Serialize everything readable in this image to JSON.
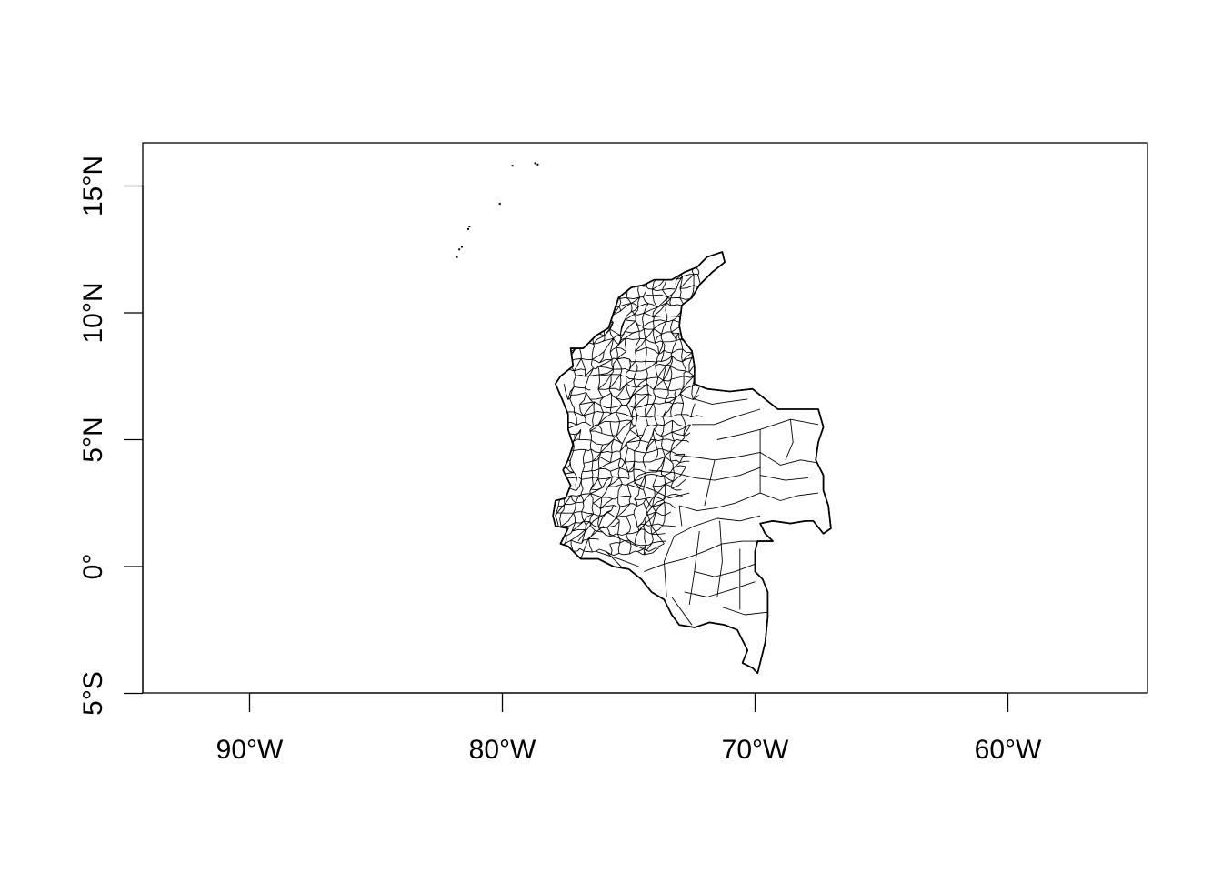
{
  "figure": {
    "type": "map",
    "region": "Colombia municipal boundaries",
    "line_color": "#000000",
    "background": "#ffffff"
  },
  "axes": {
    "x": {
      "range": [
        -94.3,
        -54.6
      ],
      "ticks": [
        {
          "value": -90,
          "label": "90°W"
        },
        {
          "value": -80,
          "label": "80°W"
        },
        {
          "value": -70,
          "label": "70°W"
        },
        {
          "value": -60,
          "label": "60°W"
        }
      ]
    },
    "y": {
      "range": [
        -5,
        16.7
      ],
      "ticks": [
        {
          "value": -5,
          "label": "5°S"
        },
        {
          "value": 0,
          "label": "0°"
        },
        {
          "value": 5,
          "label": "5°N"
        },
        {
          "value": 10,
          "label": "10°N"
        },
        {
          "value": 15,
          "label": "15°N"
        }
      ]
    }
  },
  "map": {
    "outline": [
      [
        -77.4,
        1.5
      ],
      [
        -77.9,
        1.6
      ],
      [
        -78.0,
        2.0
      ],
      [
        -77.9,
        2.6
      ],
      [
        -77.5,
        2.7
      ],
      [
        -77.3,
        3.2
      ],
      [
        -77.6,
        3.8
      ],
      [
        -77.4,
        4.2
      ],
      [
        -77.2,
        4.8
      ],
      [
        -77.4,
        5.4
      ],
      [
        -77.4,
        6.0
      ],
      [
        -77.6,
        6.5
      ],
      [
        -77.9,
        7.2
      ],
      [
        -77.7,
        7.5
      ],
      [
        -77.2,
        7.9
      ],
      [
        -77.3,
        8.6
      ],
      [
        -76.8,
        8.6
      ],
      [
        -76.3,
        9.1
      ],
      [
        -75.8,
        9.4
      ],
      [
        -75.6,
        10.0
      ],
      [
        -75.4,
        10.6
      ],
      [
        -74.9,
        11.0
      ],
      [
        -74.4,
        11.1
      ],
      [
        -74.0,
        11.3
      ],
      [
        -73.3,
        11.3
      ],
      [
        -72.8,
        11.6
      ],
      [
        -72.3,
        11.8
      ],
      [
        -71.9,
        12.2
      ],
      [
        -71.3,
        12.4
      ],
      [
        -71.2,
        12.0
      ],
      [
        -71.7,
        11.6
      ],
      [
        -72.2,
        11.1
      ],
      [
        -72.5,
        10.6
      ],
      [
        -72.9,
        10.3
      ],
      [
        -73.0,
        9.5
      ],
      [
        -72.9,
        9.0
      ],
      [
        -72.5,
        8.5
      ],
      [
        -72.4,
        7.9
      ],
      [
        -72.4,
        7.2
      ],
      [
        -71.9,
        7.0
      ],
      [
        -71.0,
        6.9
      ],
      [
        -70.1,
        7.0
      ],
      [
        -69.6,
        6.6
      ],
      [
        -69.1,
        6.2
      ],
      [
        -68.5,
        6.2
      ],
      [
        -67.5,
        6.2
      ],
      [
        -67.3,
        5.5
      ],
      [
        -67.5,
        4.9
      ],
      [
        -67.6,
        4.2
      ],
      [
        -67.3,
        3.6
      ],
      [
        -67.3,
        3.0
      ],
      [
        -67.1,
        2.4
      ],
      [
        -67.0,
        1.5
      ],
      [
        -67.3,
        1.3
      ],
      [
        -67.7,
        1.8
      ],
      [
        -68.0,
        1.8
      ],
      [
        -68.6,
        1.7
      ],
      [
        -69.3,
        1.8
      ],
      [
        -69.8,
        1.7
      ],
      [
        -69.6,
        1.3
      ],
      [
        -69.3,
        1.0
      ],
      [
        -69.9,
        1.0
      ],
      [
        -70.0,
        0.6
      ],
      [
        -70.0,
        -0.2
      ],
      [
        -69.7,
        -0.5
      ],
      [
        -69.5,
        -1.0
      ],
      [
        -69.5,
        -2.0
      ],
      [
        -69.6,
        -3.0
      ],
      [
        -69.9,
        -4.2
      ],
      [
        -70.1,
        -4.0
      ],
      [
        -70.5,
        -3.8
      ],
      [
        -70.3,
        -3.3
      ],
      [
        -70.7,
        -2.5
      ],
      [
        -71.2,
        -2.3
      ],
      [
        -71.8,
        -2.2
      ],
      [
        -72.4,
        -2.4
      ],
      [
        -73.0,
        -2.3
      ],
      [
        -73.3,
        -1.9
      ],
      [
        -73.6,
        -1.3
      ],
      [
        -74.1,
        -1.0
      ],
      [
        -74.5,
        -0.5
      ],
      [
        -75.0,
        -0.1
      ],
      [
        -75.6,
        0.0
      ],
      [
        -76.2,
        0.3
      ],
      [
        -76.9,
        0.3
      ],
      [
        -77.4,
        0.8
      ],
      [
        -77.7,
        0.9
      ],
      [
        -77.4,
        1.5
      ]
    ],
    "borders": [
      [
        [
          -69.8,
          5.4
        ],
        [
          -69.8,
          2.9
        ]
      ],
      [
        [
          -69.8,
          5.4
        ],
        [
          -68.6,
          5.8
        ],
        [
          -67.5,
          5.6
        ]
      ],
      [
        [
          -71.5,
          5.0
        ],
        [
          -70.6,
          5.2
        ],
        [
          -69.8,
          5.4
        ]
      ],
      [
        [
          -69.8,
          2.9
        ],
        [
          -69.0,
          2.6
        ],
        [
          -68.3,
          2.8
        ],
        [
          -67.5,
          2.9
        ]
      ],
      [
        [
          -69.8,
          2.9
        ],
        [
          -70.8,
          2.5
        ],
        [
          -71.6,
          2.3
        ],
        [
          -72.3,
          2.2
        ],
        [
          -73.0,
          2.4
        ]
      ],
      [
        [
          -69.8,
          2.0
        ],
        [
          -70.6,
          1.8
        ],
        [
          -71.5,
          1.9
        ],
        [
          -72.4,
          1.6
        ],
        [
          -73.2,
          1.2
        ]
      ],
      [
        [
          -69.6,
          1.0
        ],
        [
          -70.5,
          1.0
        ],
        [
          -71.3,
          0.9
        ],
        [
          -72.0,
          0.6
        ],
        [
          -72.8,
          0.3
        ],
        [
          -73.6,
          0.1
        ],
        [
          -74.4,
          -0.2
        ]
      ],
      [
        [
          -70.0,
          0.1
        ],
        [
          -70.8,
          -0.2
        ],
        [
          -71.6,
          -0.4
        ],
        [
          -72.4,
          -0.2
        ]
      ],
      [
        [
          -70.0,
          -0.6
        ],
        [
          -70.9,
          -0.9
        ],
        [
          -71.9,
          -1.2
        ],
        [
          -72.8,
          -1.0
        ]
      ],
      [
        [
          -69.5,
          -1.8
        ],
        [
          -70.4,
          -1.9
        ],
        [
          -71.3,
          -1.6
        ]
      ],
      [
        [
          -70.6,
          0.7
        ],
        [
          -70.6,
          -1.7
        ]
      ],
      [
        [
          -71.4,
          1.8
        ],
        [
          -71.3,
          0.2
        ],
        [
          -71.5,
          -1.2
        ]
      ],
      [
        [
          -72.2,
          1.4
        ],
        [
          -72.4,
          -0.2
        ],
        [
          -72.6,
          -1.5
        ]
      ],
      [
        [
          -73.2,
          1.2
        ],
        [
          -73.6,
          0.2
        ],
        [
          -73.5,
          -1.2
        ]
      ],
      [
        [
          -74.4,
          2.5
        ],
        [
          -74.1,
          1.6
        ],
        [
          -73.6,
          0.9
        ]
      ],
      [
        [
          -75.8,
          1.3
        ],
        [
          -74.9,
          0.9
        ],
        [
          -74.2,
          0.6
        ],
        [
          -73.6,
          0.9
        ]
      ],
      [
        [
          -76.3,
          0.6
        ],
        [
          -75.4,
          0.3
        ],
        [
          -74.6,
          0.0
        ]
      ],
      [
        [
          -74.2,
          3.8
        ],
        [
          -73.2,
          3.7
        ],
        [
          -72.4,
          3.5
        ],
        [
          -71.6,
          3.4
        ],
        [
          -70.6,
          3.6
        ],
        [
          -69.8,
          3.9
        ]
      ],
      [
        [
          -73.2,
          4.4
        ],
        [
          -72.3,
          4.3
        ],
        [
          -71.6,
          4.2
        ],
        [
          -70.8,
          4.3
        ],
        [
          -69.8,
          4.5
        ]
      ],
      [
        [
          -72.5,
          5.6
        ],
        [
          -71.6,
          5.6
        ],
        [
          -70.8,
          5.9
        ],
        [
          -69.8,
          6.2
        ]
      ],
      [
        [
          -72.4,
          6.6
        ],
        [
          -71.7,
          6.4
        ],
        [
          -71.0,
          6.5
        ],
        [
          -70.3,
          6.6
        ]
      ],
      [
        [
          -69.8,
          4.5
        ],
        [
          -69.0,
          4.0
        ],
        [
          -68.2,
          4.2
        ],
        [
          -67.6,
          4.1
        ]
      ],
      [
        [
          -69.8,
          3.6
        ],
        [
          -68.8,
          3.4
        ],
        [
          -67.9,
          3.5
        ]
      ],
      [
        [
          -68.6,
          5.8
        ],
        [
          -68.5,
          4.9
        ],
        [
          -68.8,
          4.2
        ]
      ],
      [
        [
          -71.6,
          4.2
        ],
        [
          -71.8,
          3.3
        ],
        [
          -72.0,
          2.4
        ]
      ],
      [
        [
          -73.0,
          2.4
        ],
        [
          -72.9,
          1.6
        ]
      ],
      [
        [
          -74.8,
          3.3
        ],
        [
          -74.0,
          3.0
        ],
        [
          -73.4,
          2.7
        ],
        [
          -72.6,
          2.9
        ]
      ],
      [
        [
          -75.9,
          0.6
        ],
        [
          -75.3,
          0.0
        ]
      ],
      [
        [
          -76.9,
          0.3
        ],
        [
          -76.6,
          1.1
        ],
        [
          -76.0,
          1.6
        ]
      ],
      [
        [
          -77.0,
          1.0
        ],
        [
          -76.4,
          1.8
        ],
        [
          -75.7,
          2.2
        ]
      ],
      [
        [
          -73.3,
          -1.2
        ],
        [
          -72.5,
          -2.3
        ]
      ]
    ],
    "dense_region": {
      "lon_range": [
        -77.9,
        -72.3
      ],
      "lat_range": [
        0.6,
        11.6
      ],
      "grid_step_deg": 0.36
    },
    "islands": [
      [
        -79.6,
        15.8
      ],
      [
        -78.7,
        15.9
      ],
      [
        -78.6,
        15.85
      ],
      [
        -80.1,
        14.3
      ],
      [
        -81.3,
        13.4
      ],
      [
        -81.35,
        13.3
      ],
      [
        -81.6,
        12.6
      ],
      [
        -81.7,
        12.5
      ],
      [
        -81.8,
        12.2
      ]
    ]
  }
}
